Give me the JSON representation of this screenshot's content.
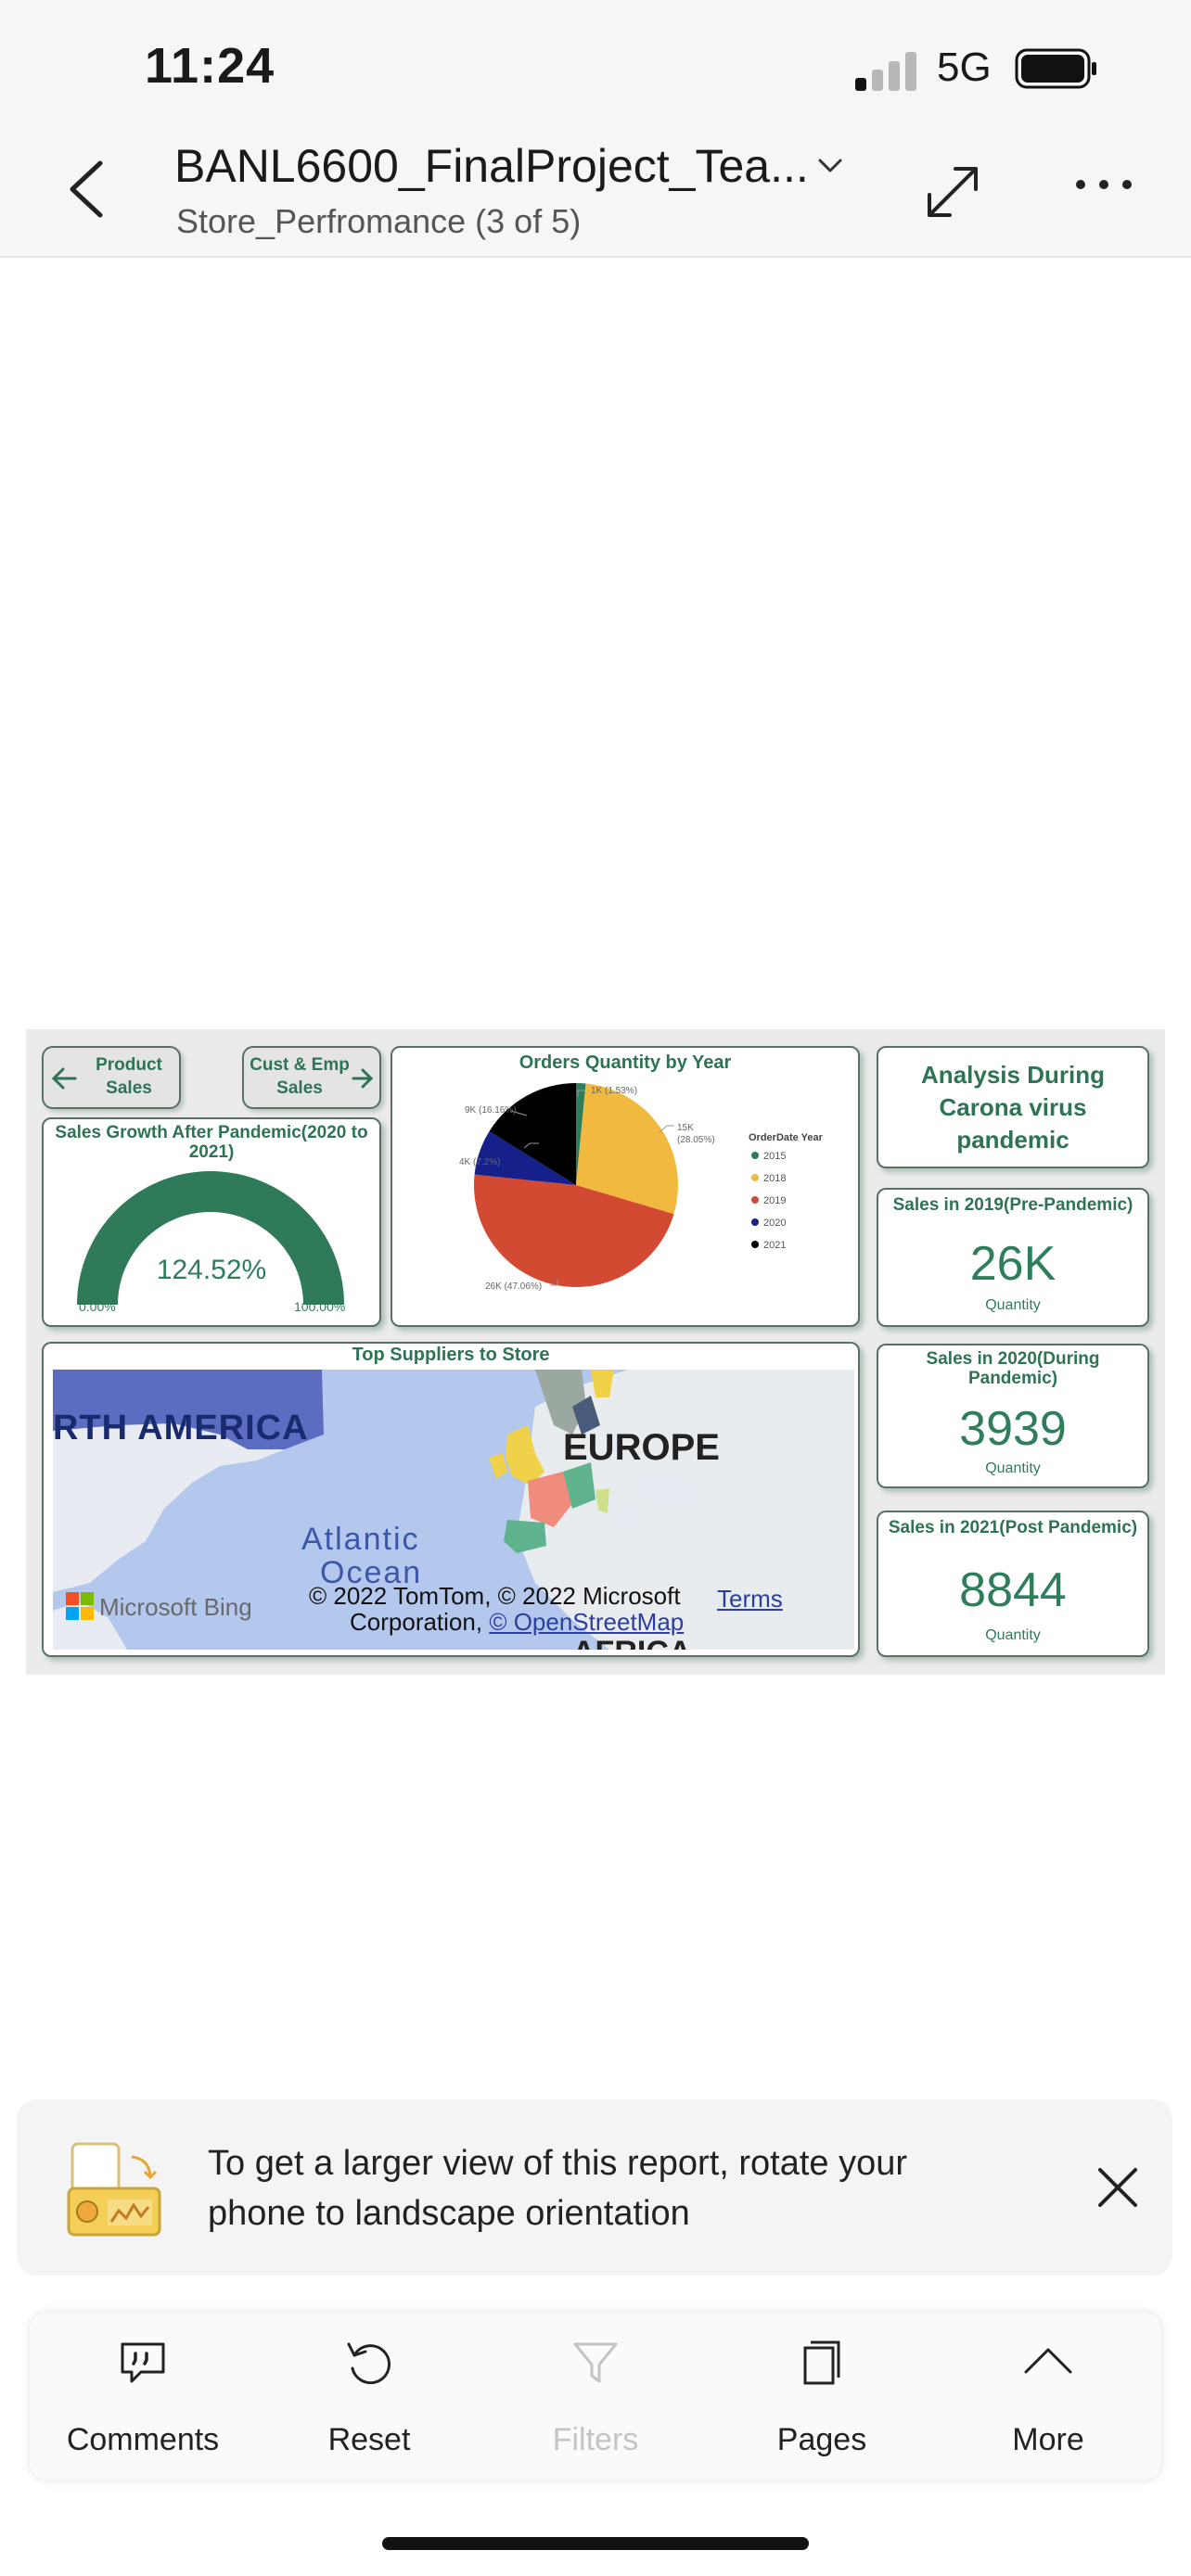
{
  "status": {
    "time": "11:24",
    "network": "5G"
  },
  "header": {
    "title": "BANL6600_FinalProject_Tea...",
    "subtitle": "Store_Perfromance (3 of 5)"
  },
  "report": {
    "nav": {
      "product_sales": [
        "Product",
        "Sales"
      ],
      "cust_emp_sales": [
        "Cust & Emp",
        "Sales"
      ]
    },
    "gauge": {
      "title": "Sales Growth After Pandemic(2020 to 2021)",
      "value_label": "124.52%",
      "min_label": "0.00%",
      "max_label": "100.00%",
      "value_percent": 124.52,
      "color": "#2f7a58"
    },
    "pie": {
      "title": "Orders Quantity by Year",
      "legend_title": "OrderDate Year",
      "labels": {
        "l2015": "1K (1.53%)",
        "l2018": "15K",
        "l2018b": "(28.05%)",
        "l2019": "26K (47.06%)",
        "l2020": "4K (7.2%)",
        "l2021": "9K (16.16%)"
      }
    },
    "analysis_title": [
      "Analysis During",
      "Carona virus",
      "pandemic"
    ],
    "kpis": [
      {
        "title": "Sales in 2019(Pre-Pandemic)",
        "value": "26K",
        "sub": "Quantity"
      },
      {
        "title": "Sales in 2020(During Pandemic)",
        "value": "3939",
        "sub": "Quantity"
      },
      {
        "title": "Sales in 2021(Post Pandemic)",
        "value": "8844",
        "sub": "Quantity"
      }
    ],
    "map": {
      "title": "Top Suppliers to Store",
      "north_america": "RTH AMERICA",
      "europe": "EUROPE",
      "atlantic": "Atlantic",
      "ocean": "Ocean",
      "africa": "AFRICA",
      "bing": "Microsoft Bing",
      "copyright_1": "© 2022 TomTom, © 2022 Microsoft",
      "copyright_2": "Corporation, ",
      "osm": "© OpenStreetMap",
      "terms": "Terms"
    }
  },
  "chart_data": {
    "type": "pie",
    "title": "Orders Quantity by Year",
    "legend_title": "OrderDate Year",
    "categories": [
      "2015",
      "2018",
      "2019",
      "2020",
      "2021"
    ],
    "values": [
      1.53,
      28.05,
      47.06,
      7.2,
      16.16
    ],
    "value_labels": [
      "1K (1.53%)",
      "15K (28.05%)",
      "26K (47.06%)",
      "4K (7.2%)",
      "9K (16.16%)"
    ],
    "colors": [
      "#2e7d5b",
      "#f2b940",
      "#d34a33",
      "#16208a",
      "#000000"
    ],
    "legend_position": "right"
  },
  "banner": {
    "line1": "To get a larger view of this report, rotate your",
    "line2": "phone to landscape orientation"
  },
  "toolbar": {
    "comments": "Comments",
    "reset": "Reset",
    "filters": "Filters",
    "pages": "Pages",
    "more": "More"
  }
}
